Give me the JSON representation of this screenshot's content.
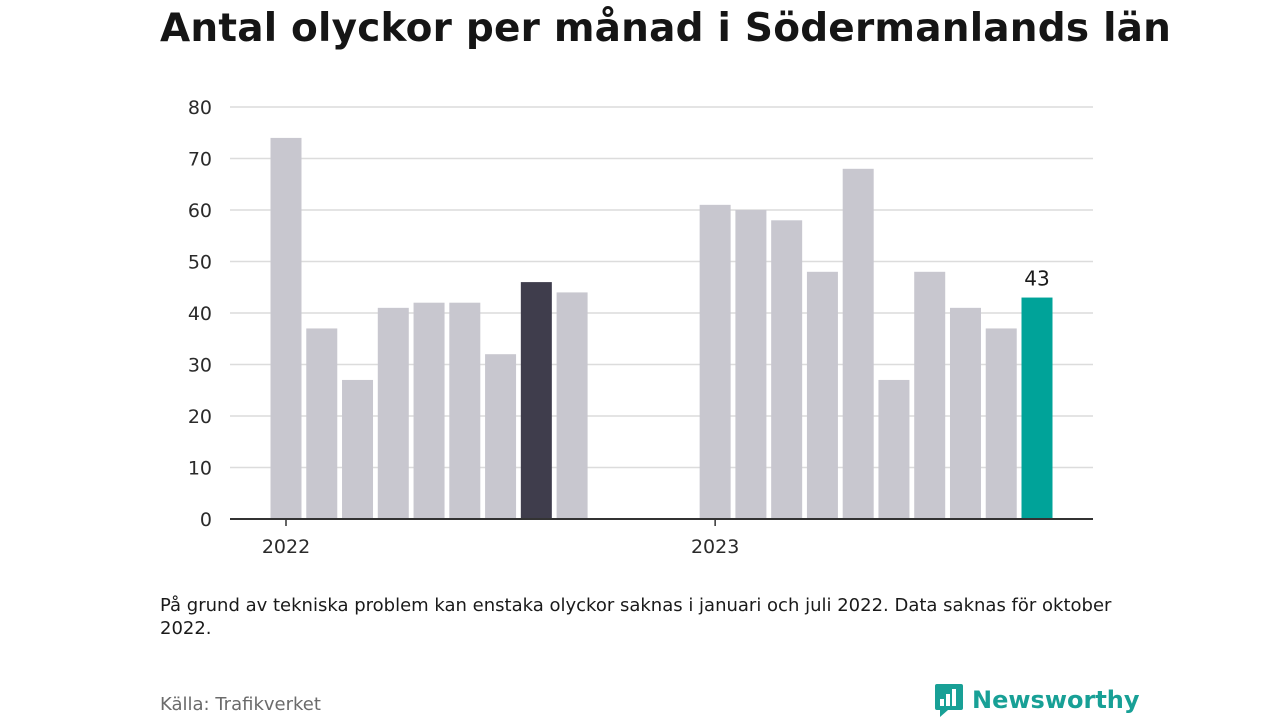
{
  "title": "Antal olyckor per månad i Södermanlands län",
  "note": "På grund av tekniska problem kan enstaka olyckor saknas i januari och juli 2022. Data saknas för oktober 2022.",
  "source": "Källa: Trafikverket",
  "brand": {
    "name": "Newsworthy",
    "icon": "newsworthy-logo-icon"
  },
  "colors": {
    "bar": "#c8c7cf",
    "highlight_dark": "#3f3d4c",
    "highlight_current": "#00a399",
    "grid": "#dcdcdc",
    "axis": "#333333"
  },
  "chart_data": {
    "type": "bar",
    "ylim": [
      0,
      80
    ],
    "yticks": [
      0,
      10,
      20,
      30,
      40,
      50,
      60,
      70,
      80
    ],
    "grid": true,
    "x_group_labels": [
      {
        "label": "2022",
        "at_index": 0
      },
      {
        "label": "2023",
        "at_index": 12
      }
    ],
    "categories": [
      "2022-01",
      "2022-02",
      "2022-03",
      "2022-04",
      "2022-05",
      "2022-06",
      "2022-07",
      "2022-08",
      "2022-09",
      "2022-10",
      "2022-11",
      "2022-12",
      "2023-01",
      "2023-02",
      "2023-03",
      "2023-04",
      "2023-05",
      "2023-06",
      "2023-07",
      "2023-08",
      "2023-09",
      "2023-10"
    ],
    "values": [
      74,
      37,
      27,
      41,
      42,
      42,
      32,
      46,
      44,
      null,
      null,
      null,
      61,
      60,
      58,
      48,
      68,
      27,
      48,
      41,
      37,
      43
    ],
    "highlight": [
      {
        "index": 7,
        "color_key": "highlight_dark"
      },
      {
        "index": 21,
        "color_key": "highlight_current",
        "label": "43"
      }
    ]
  }
}
